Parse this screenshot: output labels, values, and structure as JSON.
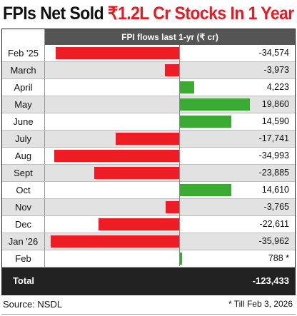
{
  "title": {
    "part1": "FPIs Net Sold ",
    "part2": "₹1.2L Cr Stocks In 1 Year"
  },
  "chart_data": {
    "type": "bar",
    "orientation": "horizontal",
    "header": "FPI flows last 1-yr (₹ cr)",
    "categories": [
      "Feb '25",
      "March",
      "April",
      "May",
      "June",
      "July",
      "Aug",
      "Sept",
      "Oct",
      "Nov",
      "Dec",
      "Jan '26",
      "Feb"
    ],
    "values": [
      -34574,
      -3973,
      4223,
      19860,
      14590,
      -17741,
      -34993,
      -23885,
      14610,
      -3765,
      -22611,
      -35962,
      788
    ],
    "value_labels": [
      "-34,574",
      "-3,973",
      "4,223",
      "19,860",
      "14,590",
      "-17,741",
      "-34,993",
      "-23,885",
      "14,610",
      "-3,765",
      "-22,611",
      "-35,962",
      "788 *"
    ],
    "total_label": "Total",
    "total_value": "-123,433",
    "colors": {
      "negative": "#ee1c25",
      "positive": "#3aaa35"
    }
  },
  "footer": {
    "source": "Source: NSDL",
    "note": "* Till Feb 3, 2026"
  }
}
